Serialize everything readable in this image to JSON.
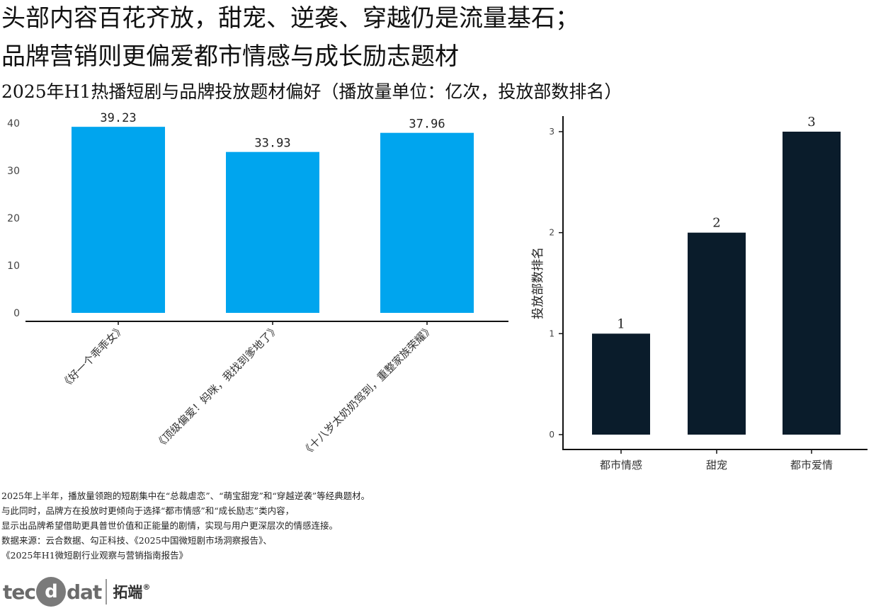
{
  "header": {
    "headline_line1": "头部内容百花齐放，甜宠、逆袭、穿越仍是流量基石；",
    "headline_line2": "品牌营销则更偏爱都市情感与成长励志题材",
    "subtitle": "2025年H1热播短剧与品牌投放题材偏好（播放量单位：亿次，投放部数排名）"
  },
  "colors": {
    "bar_left": "#00A5EE",
    "bar_right": "#0A1C2B",
    "axis": "#111111",
    "text": "#111111"
  },
  "chart_data": [
    {
      "type": "bar",
      "title": "",
      "xlabel": "",
      "ylabel": "",
      "categories": [
        "《好一个乖乖女》",
        "《顶级偏爱！妈咪，我找到爹地了》",
        "《十八岁太奶奶驾到，重整家族荣耀》"
      ],
      "values": [
        39.23,
        33.93,
        37.96
      ],
      "value_labels": [
        "39.23",
        "33.93",
        "37.96"
      ],
      "ylim": [
        0,
        40
      ],
      "yticks": [
        "0",
        "10",
        "20",
        "30",
        "40"
      ],
      "grid": false,
      "legend": "none"
    },
    {
      "type": "bar",
      "title": "",
      "xlabel": "",
      "ylabel": "投放部数排名",
      "categories": [
        "都市情感",
        "甜宠",
        "都市爱情"
      ],
      "values": [
        1,
        2,
        3
      ],
      "value_labels": [
        "1",
        "2",
        "3"
      ],
      "ylim": [
        0,
        3
      ],
      "yticks": [
        "0",
        "1",
        "2",
        "3"
      ],
      "grid": false,
      "legend": "none"
    }
  ],
  "notes": [
    "2025年上半年，播放量领跑的短剧集中在“总裁虐恋”、“萌宝甜宠”和“穿越逆袭”等经典题材。",
    "与此同时，品牌方在投放时更倾向于选择“都市情感”和“成长励志”类内容，",
    "显示出品牌希望借助更具普世价值和正能量的剧情，实现与用户更深层次的情感连接。",
    "数据来源：云合数据、勾正科技、《2025中国微短剧市场洞察报告》、",
    "《2025年H1微短剧行业观察与营销指南报告》"
  ],
  "logo": {
    "brand_prefix": "tec",
    "brand_suffix": "dat",
    "brand_cn": "拓端",
    "registered": "®",
    "icon": "tecdat-logo-icon"
  }
}
